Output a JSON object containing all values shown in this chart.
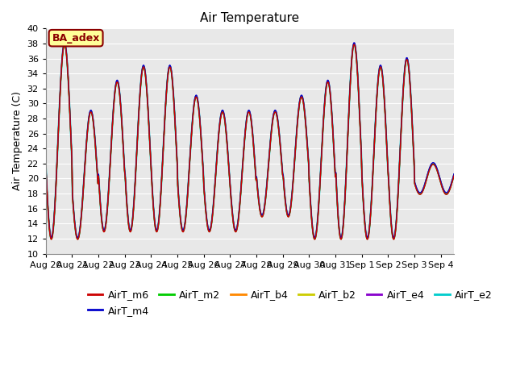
{
  "title": "Air Temperature",
  "ylabel": "Air Temperature (C)",
  "ylim": [
    10,
    40
  ],
  "fig_facecolor": "#ffffff",
  "plot_facecolor": "#e8e8e8",
  "annotation_text": "BA_adex",
  "annotation_color": "#8b0000",
  "annotation_bg": "#ffff99",
  "series_colors": {
    "AirT_m6": "#cc0000",
    "AirT_m4": "#0000cc",
    "AirT_m2": "#00cc00",
    "AirT_b4": "#ff8800",
    "AirT_b2": "#cccc00",
    "AirT_e4": "#8800cc",
    "AirT_e2": "#00cccc"
  },
  "series_order": [
    "AirT_e2",
    "AirT_e4",
    "AirT_b2",
    "AirT_b4",
    "AirT_m2",
    "AirT_m4",
    "AirT_m6"
  ],
  "tick_labels": [
    "Aug 20",
    "Aug 21",
    "Aug 22",
    "Aug 23",
    "Aug 24",
    "Aug 25",
    "Aug 26",
    "Aug 27",
    "Aug 28",
    "Aug 29",
    "Aug 30",
    "Aug 31",
    "Sep 1",
    "Sep 2",
    "Sep 3",
    "Sep 4"
  ],
  "day_peaks": [
    38,
    29,
    33,
    35,
    35,
    31,
    29,
    29,
    29,
    31,
    33,
    38,
    35,
    36,
    22
  ],
  "day_mins": [
    12,
    12,
    13,
    13,
    13,
    13,
    13,
    13,
    15,
    15,
    12,
    12,
    12,
    12,
    18
  ],
  "fontsize_title": 11,
  "fontsize_ticks": 8,
  "fontsize_legend": 9,
  "fontsize_ylabel": 9,
  "legend_order": [
    "AirT_m6",
    "AirT_m4",
    "AirT_m2",
    "AirT_b4",
    "AirT_b2",
    "AirT_e4",
    "AirT_e2"
  ]
}
